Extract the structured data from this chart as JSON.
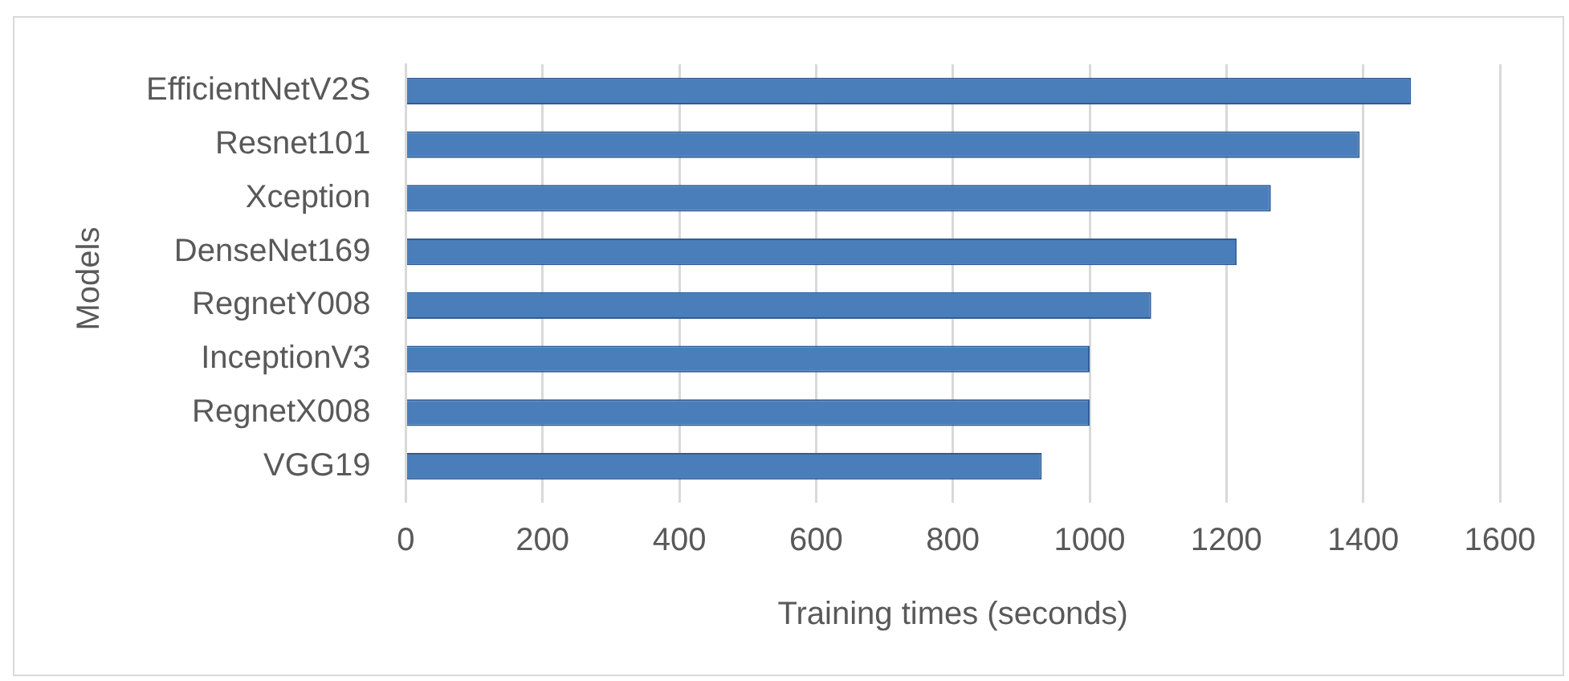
{
  "chart_data": {
    "type": "bar",
    "orientation": "horizontal",
    "categories": [
      "EfficientNetV2S",
      "Resnet101",
      "Xception",
      "DenseNet169",
      "RegnetY008",
      "InceptionV3",
      "RegnetX008",
      "VGG19"
    ],
    "values": [
      1470,
      1395,
      1265,
      1215,
      1090,
      1000,
      1000,
      930
    ],
    "color": "#4a7ebb",
    "xlabel": "Training times (seconds)",
    "ylabel": "Models",
    "xlim": [
      0,
      1600
    ],
    "xticks": [
      0,
      200,
      400,
      600,
      800,
      1000,
      1200,
      1400,
      1600
    ],
    "grid": "x"
  }
}
